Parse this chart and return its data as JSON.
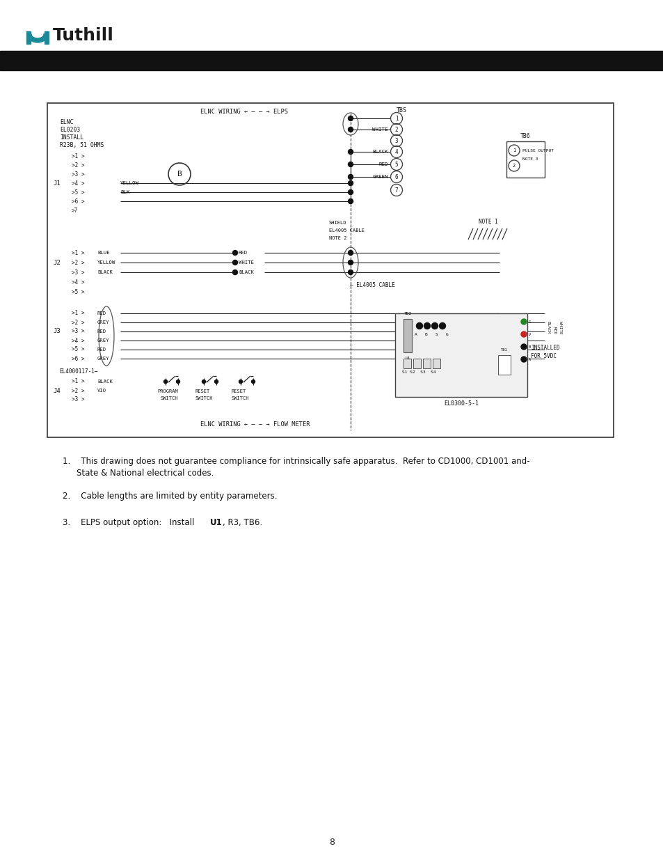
{
  "page_bg": "#ffffff",
  "logo_teal": "#1a8a99",
  "header_bar_color": "#111111",
  "page_number": "8",
  "note1a": "1.    This drawing does not guarantee compliance for intrinsically safe apparatus.  Refer to CD1000, CD1001 and-",
  "note1b": "       State & National electrical codes.",
  "note2": "2.    Cable lengths are limited by entity parameters.",
  "note3a": "3.    ELPS output option:   Install ",
  "note3b": "U1",
  "note3c": ", R3, TB6."
}
